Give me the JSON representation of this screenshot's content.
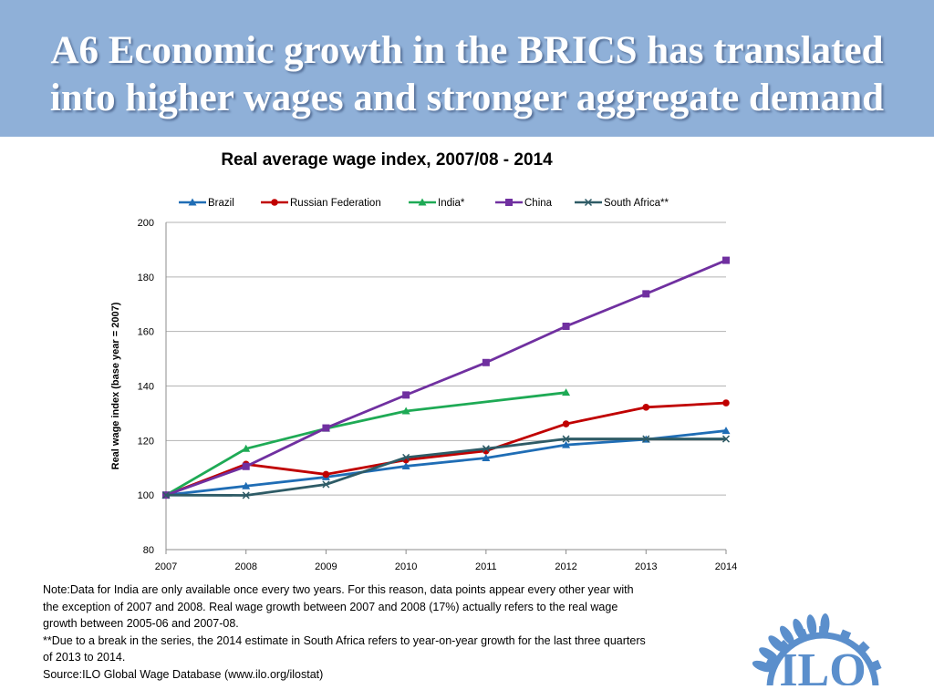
{
  "slide": {
    "title_line1": "A6  Economic growth in the BRICS has translated",
    "title_line2": "into higher wages and stronger aggregate demand"
  },
  "chart_data": {
    "type": "line",
    "title": "Real average wage index, 2007/08 - 2014",
    "ylabel": "Real wage index (base year = 2007)",
    "xlabel": "",
    "x": [
      2007,
      2008,
      2009,
      2010,
      2011,
      2012,
      2013,
      2014
    ],
    "ylim": [
      80,
      200
    ],
    "yticks": [
      80,
      100,
      120,
      140,
      160,
      180,
      200
    ],
    "grid": true,
    "legend_position": "top",
    "series": [
      {
        "name": "Brazil",
        "color": "#1f6db5",
        "marker": "triangle",
        "points": [
          [
            2007,
            100
          ],
          [
            2008,
            103.3
          ],
          [
            2009,
            106.6
          ],
          [
            2010,
            110.6
          ],
          [
            2011,
            113.6
          ],
          [
            2012,
            118.4
          ],
          [
            2013,
            120.4
          ],
          [
            2014,
            123.6
          ]
        ]
      },
      {
        "name": "Russian Federation",
        "color": "#c00000",
        "marker": "circle",
        "points": [
          [
            2007,
            100
          ],
          [
            2008,
            111.3
          ],
          [
            2009,
            107.6
          ],
          [
            2010,
            112.9
          ],
          [
            2011,
            116.2
          ],
          [
            2012,
            126.1
          ],
          [
            2013,
            132.2
          ],
          [
            2014,
            133.8
          ]
        ]
      },
      {
        "name": "India*",
        "color": "#1eaa55",
        "marker": "triangle",
        "points": [
          [
            2007,
            100
          ],
          [
            2008,
            117
          ],
          [
            2009,
            124.4
          ],
          [
            2010,
            130.8
          ],
          [
            2012,
            137.6
          ]
        ]
      },
      {
        "name": "China",
        "color": "#7030a0",
        "marker": "square",
        "points": [
          [
            2007,
            100
          ],
          [
            2008,
            110.5
          ],
          [
            2009,
            124.6
          ],
          [
            2010,
            136.7
          ],
          [
            2011,
            148.6
          ],
          [
            2012,
            161.9
          ],
          [
            2013,
            173.8
          ],
          [
            2014,
            186.1
          ]
        ]
      },
      {
        "name": "South Africa**",
        "color": "#2e5b66",
        "marker": "x",
        "points": [
          [
            2007,
            100
          ],
          [
            2008,
            99.9
          ],
          [
            2009,
            103.9
          ],
          [
            2010,
            113.8
          ],
          [
            2011,
            117
          ],
          [
            2012,
            120.6
          ],
          [
            2013,
            120.6
          ],
          [
            2014,
            120.6
          ]
        ]
      }
    ]
  },
  "notes": {
    "line1": "Note:Data for India are only available once every two years.  For this reason, data points appear every other year with",
    "line2": "the exception of 2007 and 2008.  Real wage growth between 2007 and 2008 (17%) actually refers to the real wage",
    "line3": "growth between 2005-06 and 2007-08.",
    "line4": "**Due to a break in the series, the 2014 estimate in South Africa refers to year-on-year growth for the last three quarters",
    "line5": "of 2013 to 2014.",
    "line6": "Source:ILO Global Wage Database (www.ilo.org/ilostat)"
  },
  "logo": {
    "text": "ILO",
    "icon": "ilo-logo-icon",
    "color": "#5b8fcc"
  }
}
